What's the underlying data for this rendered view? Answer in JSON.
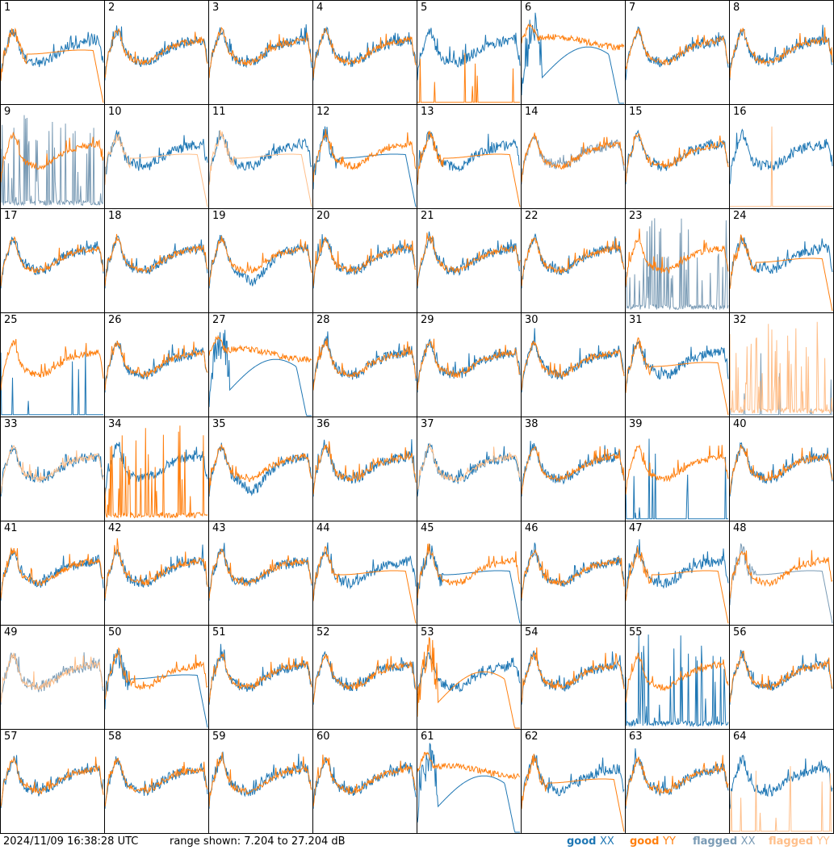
{
  "footer": {
    "timestamp": "2024/11/09 16:38:28 UTC",
    "range": "range shown: 7.204 to 27.204 dB",
    "legend": [
      {
        "prefix": "good ",
        "pol": "XX",
        "color": "#1f77b4"
      },
      {
        "prefix": "good ",
        "pol": "YY",
        "color": "#ff7f0e"
      },
      {
        "prefix": "flagged ",
        "pol": "XX",
        "color": "#7a9bb5"
      },
      {
        "prefix": "flagged ",
        "pol": "YY",
        "color": "#ffbf8a"
      }
    ]
  },
  "chart_data": {
    "type": "line",
    "ylim": [
      7.204,
      27.204
    ],
    "colors": {
      "good_xx": "#1f77b4",
      "good_yy": "#ff7f0e",
      "flagged_xx": "#7a9bb5",
      "flagged_yy": "#ffbf8a"
    },
    "panels": [
      {
        "label": "1",
        "xx": "good",
        "yy": "good",
        "xx_shape": "normal",
        "yy_shape": "rolloff"
      },
      {
        "label": "2",
        "xx": "good",
        "yy": "good",
        "xx_shape": "normal",
        "yy_shape": "normal"
      },
      {
        "label": "3",
        "xx": "good",
        "yy": "good",
        "xx_shape": "normal",
        "yy_shape": "normal"
      },
      {
        "label": "4",
        "xx": "good",
        "yy": "good",
        "xx_shape": "normal",
        "yy_shape": "normal"
      },
      {
        "label": "5",
        "xx": "good",
        "yy": "good",
        "xx_shape": "normal",
        "yy_shape": "floor"
      },
      {
        "label": "6",
        "xx": "good",
        "yy": "good",
        "xx_shape": "dip",
        "yy_shape": "high"
      },
      {
        "label": "7",
        "xx": "good",
        "yy": "good",
        "xx_shape": "normal",
        "yy_shape": "normal"
      },
      {
        "label": "8",
        "xx": "good",
        "yy": "good",
        "xx_shape": "normal",
        "yy_shape": "normal"
      },
      {
        "label": "9",
        "xx": "flagged",
        "yy": "good",
        "xx_shape": "spikes",
        "yy_shape": "normal"
      },
      {
        "label": "10",
        "xx": "good",
        "yy": "flagged",
        "xx_shape": "normal",
        "yy_shape": "rolloff"
      },
      {
        "label": "11",
        "xx": "good",
        "yy": "flagged",
        "xx_shape": "normal",
        "yy_shape": "rolloff"
      },
      {
        "label": "12",
        "xx": "good",
        "yy": "good",
        "xx_shape": "rolloff",
        "yy_shape": "normal"
      },
      {
        "label": "13",
        "xx": "good",
        "yy": "good",
        "xx_shape": "normal",
        "yy_shape": "rolloff"
      },
      {
        "label": "14",
        "xx": "flagged",
        "yy": "good",
        "xx_shape": "normal",
        "yy_shape": "normal"
      },
      {
        "label": "15",
        "xx": "good",
        "yy": "good",
        "xx_shape": "normal",
        "yy_shape": "normal"
      },
      {
        "label": "16",
        "xx": "good",
        "yy": "flagged",
        "xx_shape": "normal",
        "yy_shape": "floor"
      },
      {
        "label": "17",
        "xx": "good",
        "yy": "good",
        "xx_shape": "normal",
        "yy_shape": "normal"
      },
      {
        "label": "18",
        "xx": "good",
        "yy": "good",
        "xx_shape": "normal",
        "yy_shape": "normal"
      },
      {
        "label": "19",
        "xx": "good",
        "yy": "good",
        "xx_shape": "low",
        "yy_shape": "normal"
      },
      {
        "label": "20",
        "xx": "good",
        "yy": "good",
        "xx_shape": "normal",
        "yy_shape": "normal"
      },
      {
        "label": "21",
        "xx": "good",
        "yy": "good",
        "xx_shape": "normal",
        "yy_shape": "normal"
      },
      {
        "label": "22",
        "xx": "good",
        "yy": "good",
        "xx_shape": "normal",
        "yy_shape": "normal"
      },
      {
        "label": "23",
        "xx": "flagged",
        "yy": "good",
        "xx_shape": "spikes",
        "yy_shape": "normal"
      },
      {
        "label": "24",
        "xx": "good",
        "yy": "good",
        "xx_shape": "normal",
        "yy_shape": "rolloff"
      },
      {
        "label": "25",
        "xx": "good",
        "yy": "good",
        "xx_shape": "floor",
        "yy_shape": "normal"
      },
      {
        "label": "26",
        "xx": "good",
        "yy": "good",
        "xx_shape": "normal",
        "yy_shape": "normal"
      },
      {
        "label": "27",
        "xx": "good",
        "yy": "good",
        "xx_shape": "dip",
        "yy_shape": "high"
      },
      {
        "label": "28",
        "xx": "good",
        "yy": "good",
        "xx_shape": "normal",
        "yy_shape": "normal"
      },
      {
        "label": "29",
        "xx": "good",
        "yy": "good",
        "xx_shape": "normal",
        "yy_shape": "normal"
      },
      {
        "label": "30",
        "xx": "good",
        "yy": "good",
        "xx_shape": "normal",
        "yy_shape": "normal"
      },
      {
        "label": "31",
        "xx": "good",
        "yy": "good",
        "xx_shape": "normal",
        "yy_shape": "rolloff"
      },
      {
        "label": "32",
        "xx": "flagged",
        "yy": "flagged",
        "xx_shape": "floor",
        "yy_shape": "spikes"
      },
      {
        "label": "33",
        "xx": "good",
        "yy": "flagged",
        "xx_shape": "normal",
        "yy_shape": "normal"
      },
      {
        "label": "34",
        "xx": "good",
        "yy": "good",
        "xx_shape": "normal",
        "yy_shape": "spikes"
      },
      {
        "label": "35",
        "xx": "good",
        "yy": "good",
        "xx_shape": "low",
        "yy_shape": "normal"
      },
      {
        "label": "36",
        "xx": "good",
        "yy": "good",
        "xx_shape": "normal",
        "yy_shape": "normal"
      },
      {
        "label": "37",
        "xx": "good",
        "yy": "flagged",
        "xx_shape": "normal",
        "yy_shape": "normal"
      },
      {
        "label": "38",
        "xx": "good",
        "yy": "good",
        "xx_shape": "normal",
        "yy_shape": "normal"
      },
      {
        "label": "39",
        "xx": "good",
        "yy": "good",
        "xx_shape": "floor",
        "yy_shape": "normal"
      },
      {
        "label": "40",
        "xx": "good",
        "yy": "good",
        "xx_shape": "normal",
        "yy_shape": "normal"
      },
      {
        "label": "41",
        "xx": "good",
        "yy": "good",
        "xx_shape": "normal",
        "yy_shape": "normal"
      },
      {
        "label": "42",
        "xx": "good",
        "yy": "good",
        "xx_shape": "normal",
        "yy_shape": "normal"
      },
      {
        "label": "43",
        "xx": "good",
        "yy": "good",
        "xx_shape": "normal",
        "yy_shape": "normal"
      },
      {
        "label": "44",
        "xx": "good",
        "yy": "good",
        "xx_shape": "normal",
        "yy_shape": "rolloff"
      },
      {
        "label": "45",
        "xx": "good",
        "yy": "good",
        "xx_shape": "rolloff",
        "yy_shape": "normal"
      },
      {
        "label": "46",
        "xx": "good",
        "yy": "good",
        "xx_shape": "normal",
        "yy_shape": "normal"
      },
      {
        "label": "47",
        "xx": "good",
        "yy": "good",
        "xx_shape": "normal",
        "yy_shape": "rolloff"
      },
      {
        "label": "48",
        "xx": "flagged",
        "yy": "good",
        "xx_shape": "rolloff",
        "yy_shape": "normal"
      },
      {
        "label": "49",
        "xx": "flagged",
        "yy": "flagged",
        "xx_shape": "normal",
        "yy_shape": "normal"
      },
      {
        "label": "50",
        "xx": "good",
        "yy": "good",
        "xx_shape": "rolloff",
        "yy_shape": "normal"
      },
      {
        "label": "51",
        "xx": "good",
        "yy": "good",
        "xx_shape": "normal",
        "yy_shape": "normal"
      },
      {
        "label": "52",
        "xx": "good",
        "yy": "good",
        "xx_shape": "normal",
        "yy_shape": "normal"
      },
      {
        "label": "53",
        "xx": "good",
        "yy": "good",
        "xx_shape": "normal",
        "yy_shape": "dip"
      },
      {
        "label": "54",
        "xx": "good",
        "yy": "good",
        "xx_shape": "normal",
        "yy_shape": "normal"
      },
      {
        "label": "55",
        "xx": "good",
        "yy": "good",
        "xx_shape": "spikes",
        "yy_shape": "normal"
      },
      {
        "label": "56",
        "xx": "good",
        "yy": "good",
        "xx_shape": "normal",
        "yy_shape": "normal"
      },
      {
        "label": "57",
        "xx": "good",
        "yy": "good",
        "xx_shape": "normal",
        "yy_shape": "normal"
      },
      {
        "label": "58",
        "xx": "good",
        "yy": "good",
        "xx_shape": "normal",
        "yy_shape": "normal"
      },
      {
        "label": "59",
        "xx": "good",
        "yy": "good",
        "xx_shape": "normal",
        "yy_shape": "normal"
      },
      {
        "label": "60",
        "xx": "good",
        "yy": "good",
        "xx_shape": "normal",
        "yy_shape": "normal"
      },
      {
        "label": "61",
        "xx": "good",
        "yy": "good",
        "xx_shape": "dip",
        "yy_shape": "high"
      },
      {
        "label": "62",
        "xx": "good",
        "yy": "good",
        "xx_shape": "normal",
        "yy_shape": "rolloff"
      },
      {
        "label": "63",
        "xx": "good",
        "yy": "good",
        "xx_shape": "normal",
        "yy_shape": "normal"
      },
      {
        "label": "64",
        "xx": "good",
        "yy": "flagged",
        "xx_shape": "normal",
        "yy_shape": "floor"
      }
    ]
  }
}
